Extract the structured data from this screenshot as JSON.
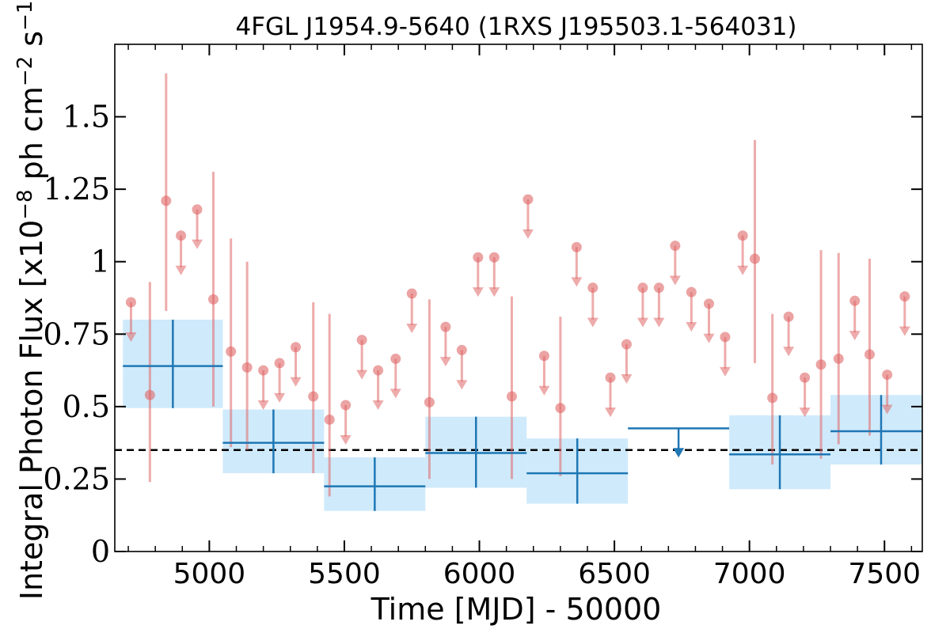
{
  "chart_data": {
    "type": "scatter",
    "title": "4FGL J1954.9-5640 (1RXS J195503.1-564031)",
    "xlabel": "Time [MJD] - 50000",
    "ylabel_main": "Integral Photon Flux [x10",
    "ylabel_exp1": "−8",
    "ylabel_mid": " ph cm",
    "ylabel_exp2": "−2",
    "ylabel_s": " s",
    "ylabel_exp3": "−1",
    "ylabel_end": "]",
    "xlim": [
      4650,
      7640
    ],
    "ylim": [
      0,
      1.75
    ],
    "xticks": [
      5000,
      5500,
      6000,
      6500,
      7000,
      7500
    ],
    "xtick_labels": [
      "5000",
      "5500",
      "6000",
      "6500",
      "7000",
      "7500"
    ],
    "yticks": [
      0,
      0.25,
      0.5,
      0.75,
      1.0,
      1.25,
      1.5
    ],
    "ytick_labels": [
      "0",
      "0.25",
      "0.5",
      "0.75",
      "1",
      "1.25",
      "1.5"
    ],
    "reference_line": {
      "y": 0.35,
      "style": "dashed",
      "color": "#000000"
    },
    "colors": {
      "short_bins": "#e06666",
      "long_bins": "#1f77b4",
      "band_fill": "#cfeafb"
    },
    "series": [
      {
        "kind": "short-bin detections",
        "points": [
          {
            "x": 4780,
            "y": 0.54,
            "ylo": 0.24,
            "yhi": 0.93
          },
          {
            "x": 4840,
            "y": 1.21,
            "ylo": 0.83,
            "yhi": 1.65
          },
          {
            "x": 5015,
            "y": 0.87,
            "ylo": 0.5,
            "yhi": 1.31
          },
          {
            "x": 5080,
            "y": 0.69,
            "ylo": 0.36,
            "yhi": 1.08
          },
          {
            "x": 5140,
            "y": 0.635,
            "ylo": 0.35,
            "yhi": 1.0
          },
          {
            "x": 5385,
            "y": 0.535,
            "ylo": 0.27,
            "yhi": 0.86
          },
          {
            "x": 5445,
            "y": 0.455,
            "ylo": 0.19,
            "yhi": 0.82
          },
          {
            "x": 5815,
            "y": 0.515,
            "ylo": 0.25,
            "yhi": 0.87
          },
          {
            "x": 6120,
            "y": 0.535,
            "ylo": 0.25,
            "yhi": 0.88
          },
          {
            "x": 6300,
            "y": 0.495,
            "ylo": 0.26,
            "yhi": 0.81
          },
          {
            "x": 7020,
            "y": 1.01,
            "ylo": 0.65,
            "yhi": 1.42
          },
          {
            "x": 7085,
            "y": 0.53,
            "ylo": 0.3,
            "yhi": 0.82
          },
          {
            "x": 7265,
            "y": 0.645,
            "ylo": 0.32,
            "yhi": 1.04
          },
          {
            "x": 7330,
            "y": 0.665,
            "ylo": 0.37,
            "yhi": 1.03
          },
          {
            "x": 7445,
            "y": 0.68,
            "ylo": 0.4,
            "yhi": 1.01
          }
        ]
      },
      {
        "kind": "short-bin upper limits",
        "points": [
          {
            "x": 4710,
            "y": 0.86
          },
          {
            "x": 4895,
            "y": 1.09
          },
          {
            "x": 4955,
            "y": 1.18
          },
          {
            "x": 5200,
            "y": 0.625
          },
          {
            "x": 5260,
            "y": 0.65
          },
          {
            "x": 5320,
            "y": 0.705
          },
          {
            "x": 5505,
            "y": 0.505
          },
          {
            "x": 5565,
            "y": 0.73
          },
          {
            "x": 5625,
            "y": 0.625
          },
          {
            "x": 5690,
            "y": 0.665
          },
          {
            "x": 5750,
            "y": 0.89
          },
          {
            "x": 5875,
            "y": 0.775
          },
          {
            "x": 5935,
            "y": 0.695
          },
          {
            "x": 5995,
            "y": 1.015
          },
          {
            "x": 6055,
            "y": 1.015
          },
          {
            "x": 6180,
            "y": 1.215
          },
          {
            "x": 6240,
            "y": 0.675
          },
          {
            "x": 6360,
            "y": 1.05
          },
          {
            "x": 6420,
            "y": 0.91
          },
          {
            "x": 6485,
            "y": 0.6
          },
          {
            "x": 6545,
            "y": 0.715
          },
          {
            "x": 6605,
            "y": 0.91
          },
          {
            "x": 6665,
            "y": 0.91
          },
          {
            "x": 6725,
            "y": 1.055
          },
          {
            "x": 6785,
            "y": 0.895
          },
          {
            "x": 6850,
            "y": 0.855
          },
          {
            "x": 6910,
            "y": 0.74
          },
          {
            "x": 6975,
            "y": 1.09
          },
          {
            "x": 7145,
            "y": 0.81
          },
          {
            "x": 7205,
            "y": 0.6
          },
          {
            "x": 7390,
            "y": 0.865
          },
          {
            "x": 7510,
            "y": 0.61
          },
          {
            "x": 7575,
            "y": 0.88
          }
        ]
      },
      {
        "kind": "long-bin detections",
        "bins": [
          {
            "x0": 4680,
            "x1": 5050,
            "y": 0.64,
            "ylo": 0.495,
            "yhi": 0.8
          },
          {
            "x0": 5050,
            "x1": 5425,
            "y": 0.375,
            "ylo": 0.27,
            "yhi": 0.49
          },
          {
            "x0": 5425,
            "x1": 5800,
            "y": 0.225,
            "ylo": 0.14,
            "yhi": 0.325
          },
          {
            "x0": 5800,
            "x1": 6175,
            "y": 0.34,
            "ylo": 0.22,
            "yhi": 0.465
          },
          {
            "x0": 6175,
            "x1": 6550,
            "y": 0.27,
            "ylo": 0.165,
            "yhi": 0.39
          },
          {
            "x0": 6925,
            "x1": 7300,
            "y": 0.335,
            "ylo": 0.215,
            "yhi": 0.47
          },
          {
            "x0": 7300,
            "x1": 7675,
            "y": 0.415,
            "ylo": 0.3,
            "yhi": 0.54
          }
        ]
      },
      {
        "kind": "long-bin upper limit",
        "bins": [
          {
            "x0": 6550,
            "x1": 6925,
            "y": 0.425
          }
        ]
      }
    ]
  }
}
